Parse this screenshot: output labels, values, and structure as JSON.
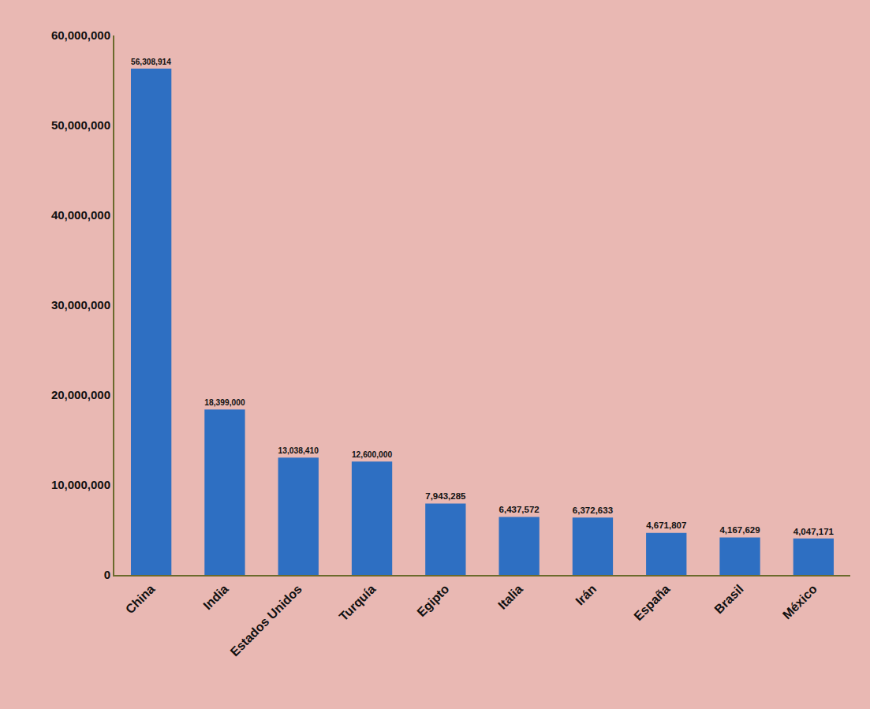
{
  "chart_data": {
    "type": "bar",
    "categories": [
      "China",
      "India",
      "Estados Unidos",
      "Turquía",
      "Egipto",
      "Italia",
      "Irán",
      "España",
      "Brasil",
      "México"
    ],
    "values": [
      56308914,
      18399000,
      13038410,
      12600000,
      7943285,
      6437572,
      6372633,
      4671807,
      4167629,
      4047171
    ],
    "value_labels": [
      "56,308,914",
      "18,399,000",
      "13,038,410",
      "12,600,000",
      "7,943,285",
      "6,437,572",
      "6,372,633",
      "4,671,807",
      "4,167,629",
      "4,047,171"
    ],
    "color": "#2e6fc2",
    "data_labels": true,
    "grid": false,
    "ylim": [
      0,
      60000000
    ],
    "yticks": [
      0,
      {
        "value": 10000000,
        "label": "10,000,000"
      },
      {
        "value": 20000000,
        "label": "20,000,000"
      },
      {
        "value": 30000000,
        "label": "30,000,000"
      },
      {
        "value": 40000000,
        "label": "40,000,000"
      },
      {
        "value": 50000000,
        "label": "50,000,000"
      },
      {
        "value": 60000000,
        "label": "60,000,000"
      }
    ]
  }
}
